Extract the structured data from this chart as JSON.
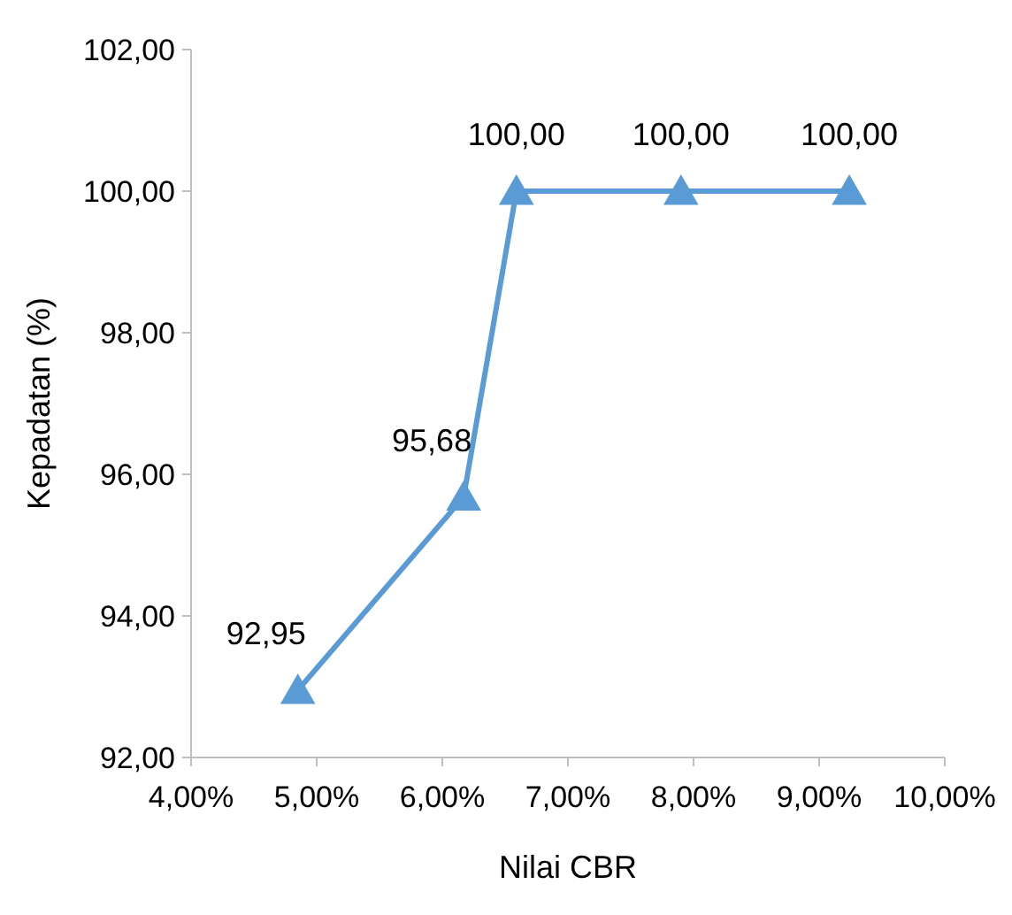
{
  "chart_data": {
    "type": "line",
    "xlabel": "Nilai CBR",
    "ylabel": "Kepadatan (%)",
    "x": [
      4.85,
      6.17,
      6.59,
      7.9,
      9.24
    ],
    "series": [
      {
        "color": "#5b9bd5",
        "values": [
          92.95,
          95.68,
          100,
          100,
          100
        ],
        "value_labels": [
          "92,95",
          "95,68",
          "100,00",
          "100,00",
          "100,00"
        ]
      }
    ],
    "xlim": [
      4,
      10
    ],
    "xticks": [
      {
        "value": 4,
        "label": "4,00%"
      },
      {
        "value": 5,
        "label": "5,00%"
      },
      {
        "value": 6,
        "label": "6,00%"
      },
      {
        "value": 7,
        "label": "7,00%"
      },
      {
        "value": 8,
        "label": "8,00%"
      },
      {
        "value": 9,
        "label": "9,00%"
      },
      {
        "value": 10,
        "label": "10,00%"
      }
    ],
    "ylim": [
      92,
      102
    ],
    "yticks": [
      {
        "value": 92,
        "label": "92,00"
      },
      {
        "value": 94,
        "label": "94,00"
      },
      {
        "value": 96,
        "label": "96,00"
      },
      {
        "value": 98,
        "label": "98,00"
      },
      {
        "value": 100,
        "label": "100,00"
      },
      {
        "value": 102,
        "label": "102,00"
      }
    ],
    "marker": "triangle",
    "grid": false
  }
}
